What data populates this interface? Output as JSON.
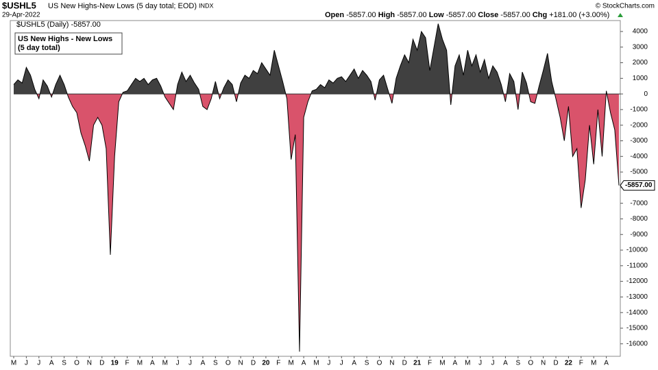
{
  "header": {
    "symbol": "$USHL5",
    "description": "US New Highs-New Lows (5 day total; EOD)",
    "exchange": "INDX",
    "date": "29-Apr-2022",
    "quote": [
      {
        "label": "Open",
        "value": "-5857.00"
      },
      {
        "label": "High",
        "value": "-5857.00"
      },
      {
        "label": "Low",
        "value": "-5857.00"
      },
      {
        "label": "Close",
        "value": "-5857.00"
      },
      {
        "label": "Chg",
        "value": "+181.00 (+3.00%)"
      }
    ],
    "credit": "© StockCharts.com"
  },
  "chart_data": {
    "type": "area",
    "legend_text": "$USHL5 (Daily) -5857.00",
    "title_box": [
      "US New Highs - New Lows",
      "(5 day total)"
    ],
    "last_label": "-5857.00",
    "pos_color": "#404040",
    "neg_color": "#d9536b",
    "categories": [
      "M",
      null,
      null,
      "J",
      null,
      null,
      "J",
      null,
      null,
      "A",
      null,
      null,
      "S",
      null,
      null,
      "O",
      null,
      null,
      "N",
      null,
      null,
      "D",
      null,
      null,
      "19",
      null,
      null,
      "F",
      null,
      null,
      "M",
      null,
      null,
      "A",
      null,
      null,
      "M",
      null,
      null,
      "J",
      null,
      null,
      "J",
      null,
      null,
      "A",
      null,
      null,
      "S",
      null,
      null,
      "O",
      null,
      null,
      "N",
      null,
      null,
      "D",
      null,
      null,
      "20",
      null,
      null,
      "F",
      null,
      null,
      "M",
      null,
      null,
      "A",
      null,
      null,
      "M",
      null,
      null,
      "J",
      null,
      null,
      "J",
      null,
      null,
      "A",
      null,
      null,
      "S",
      null,
      null,
      "O",
      null,
      null,
      "N",
      null,
      null,
      "D",
      null,
      null,
      "21",
      null,
      null,
      "F",
      null,
      null,
      "M",
      null,
      null,
      "A",
      null,
      null,
      "M",
      null,
      null,
      "J",
      null,
      null,
      "J",
      null,
      null,
      "A",
      null,
      null,
      "S",
      null,
      null,
      "O",
      null,
      null,
      "N",
      null,
      null,
      "D",
      null,
      null,
      "22",
      null,
      null,
      "F",
      null,
      null,
      "M",
      null,
      null,
      "A",
      null,
      null,
      null
    ],
    "values": [
      600,
      900,
      700,
      1700,
      1200,
      300,
      -300,
      900,
      500,
      -200,
      600,
      1200,
      600,
      -200,
      -800,
      -1200,
      -2500,
      -3300,
      -4300,
      -2000,
      -1500,
      -2000,
      -3500,
      -10300,
      -4000,
      -500,
      100,
      200,
      600,
      1000,
      800,
      1000,
      600,
      900,
      1000,
      500,
      -200,
      -600,
      -1000,
      600,
      1400,
      800,
      1200,
      700,
      300,
      -800,
      -1000,
      -300,
      800,
      -300,
      400,
      900,
      600,
      -500,
      700,
      1200,
      1000,
      1500,
      1300,
      2000,
      1600,
      1200,
      2800,
      1800,
      800,
      -300,
      -4200,
      -2600,
      -16500,
      -1500,
      -500,
      200,
      300,
      600,
      400,
      900,
      700,
      1000,
      1100,
      800,
      1200,
      1600,
      1000,
      1500,
      1200,
      800,
      -400,
      900,
      1200,
      300,
      -600,
      1000,
      1800,
      2500,
      2000,
      3500,
      2800,
      4000,
      3600,
      1500,
      3000,
      4500,
      3500,
      2800,
      -700,
      1800,
      2500,
      1200,
      2800,
      1800,
      2500,
      1400,
      2200,
      1000,
      1800,
      1400,
      600,
      -500,
      1300,
      800,
      -1000,
      1400,
      700,
      -500,
      -600,
      500,
      1500,
      2600,
      800,
      -300,
      -1500,
      -3000,
      -800,
      -4000,
      -3500,
      -7300,
      -5500,
      -2000,
      -4500,
      -1000,
      -4000,
      200,
      -1200,
      -2300,
      -5857
    ],
    "ylim": [
      -16800,
      4700
    ],
    "yticks": [
      4000,
      3000,
      2000,
      1000,
      0,
      -1000,
      -2000,
      -3000,
      -4000,
      -5000,
      -6000,
      -7000,
      -8000,
      -9000,
      -10000,
      -11000,
      -12000,
      -13000,
      -14000,
      -15000,
      -16000
    ]
  }
}
